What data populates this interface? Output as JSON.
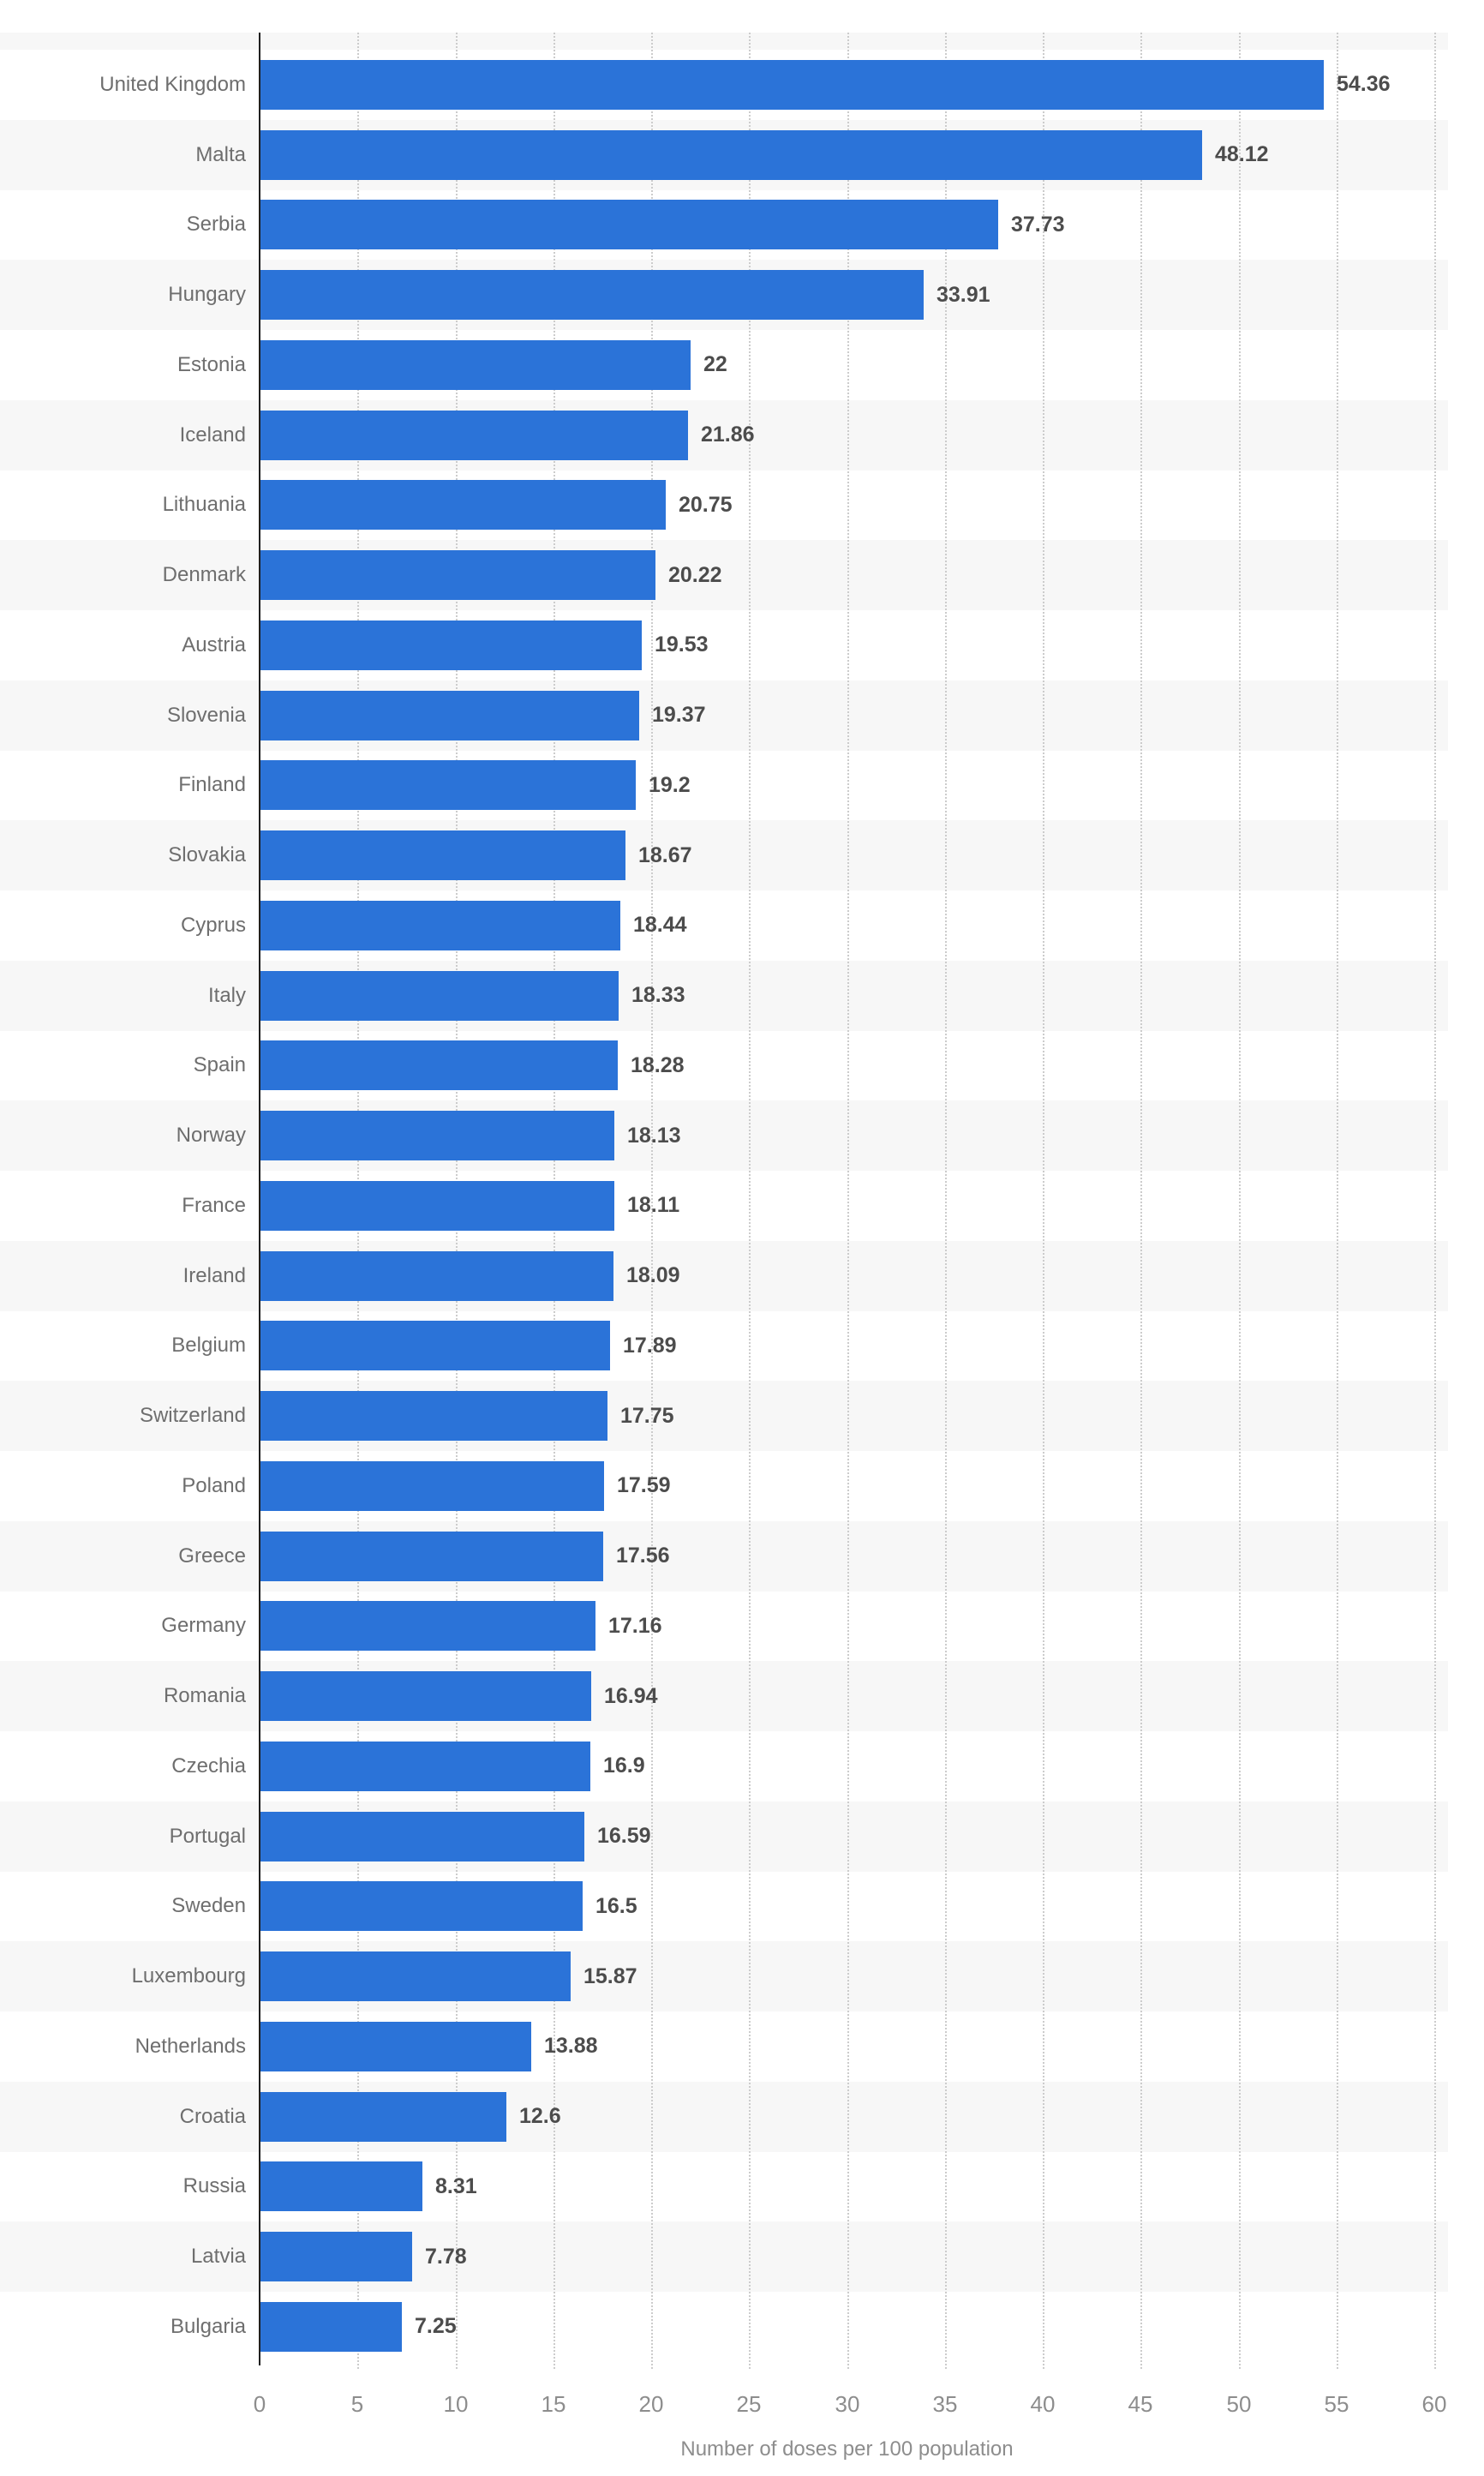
{
  "chart_data": {
    "type": "bar",
    "orientation": "horizontal",
    "title": "",
    "xlabel": "Number of doses per 100 population",
    "ylabel": "",
    "xlim": [
      0,
      60
    ],
    "xticks": [
      0,
      5,
      10,
      15,
      20,
      25,
      30,
      35,
      40,
      45,
      50,
      55,
      60
    ],
    "xtick_labels": [
      "0",
      "5",
      "10",
      "15",
      "20",
      "25",
      "30",
      "35",
      "40",
      "45",
      "50",
      "55",
      "60"
    ],
    "grid": "vertical-dotted",
    "legend": "none",
    "row_banding": "alternating, second row shaded",
    "categories": [
      "United Kingdom",
      "Malta",
      "Serbia",
      "Hungary",
      "Estonia",
      "Iceland",
      "Lithuania",
      "Denmark",
      "Austria",
      "Slovenia",
      "Finland",
      "Slovakia",
      "Cyprus",
      "Italy",
      "Spain",
      "Norway",
      "France",
      "Ireland",
      "Belgium",
      "Switzerland",
      "Poland",
      "Greece",
      "Germany",
      "Romania",
      "Czechia",
      "Portugal",
      "Sweden",
      "Luxembourg",
      "Netherlands",
      "Croatia",
      "Russia",
      "Latvia",
      "Bulgaria"
    ],
    "values": [
      54.36,
      48.12,
      37.73,
      33.91,
      22,
      21.86,
      20.75,
      20.22,
      19.53,
      19.37,
      19.2,
      18.67,
      18.44,
      18.33,
      18.28,
      18.13,
      18.11,
      18.09,
      17.89,
      17.75,
      17.59,
      17.56,
      17.16,
      16.94,
      16.9,
      16.59,
      16.5,
      15.87,
      13.88,
      12.6,
      8.31,
      7.78,
      7.25
    ],
    "value_labels": [
      "54.36",
      "48.12",
      "37.73",
      "33.91",
      "22",
      "21.86",
      "20.75",
      "20.22",
      "19.53",
      "19.37",
      "19.2",
      "18.67",
      "18.44",
      "18.33",
      "18.28",
      "18.13",
      "18.11",
      "18.09",
      "17.89",
      "17.75",
      "17.59",
      "17.56",
      "17.16",
      "16.94",
      "16.9",
      "16.59",
      "16.5",
      "15.87",
      "13.88",
      "12.6",
      "8.31",
      "7.78",
      "7.25"
    ],
    "colors": {
      "bar": "#2b73d8",
      "stripe": "#f7f7f7",
      "gridline": "#cccccc",
      "axis_line": "#1f1f1f",
      "cat_label": "#6e6e6e",
      "value_label": "#4c4c4c",
      "tick_label": "#8d8d8d",
      "axis_title": "#8d8d8d"
    }
  }
}
